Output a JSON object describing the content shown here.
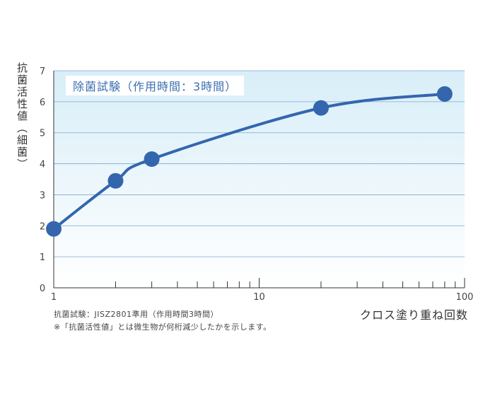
{
  "chart_data": {
    "type": "line",
    "title": "除菌試験（作用時間：3時間）",
    "xlabel": "クロス塗り重ね回数",
    "ylabel": "抗菌活性値（細菌）",
    "x_scale": "log",
    "xlim": [
      1,
      100
    ],
    "ylim": [
      0,
      7
    ],
    "x_ticks": [
      "1",
      "10",
      "100"
    ],
    "y_ticks": [
      "0",
      "1",
      "2",
      "3",
      "4",
      "5",
      "6",
      "7"
    ],
    "grid": true,
    "series": [
      {
        "x": [
          1,
          2,
          3,
          20,
          80
        ],
        "y": [
          1.9,
          3.45,
          4.15,
          5.8,
          6.25
        ]
      }
    ],
    "colors": {
      "line": "#3466ad",
      "marker": "#3466ad",
      "gradient_top": "#d8eef8",
      "gradient_bottom": "#ffffff",
      "grid": "#7fa8d0"
    }
  },
  "notes": {
    "line1": "抗菌試験：JISZ2801準用（作用時間3時間）",
    "line2": "※「抗菌活性値」とは微生物が何桁減少したかを示します。"
  }
}
